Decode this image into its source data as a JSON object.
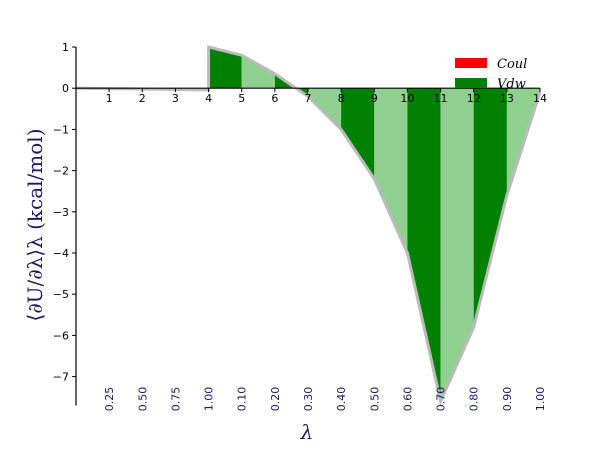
{
  "chart_data": {
    "type": "area",
    "ylabel": "⟨∂U/∂λ⟩λ (kcal/mol)",
    "xlabel": "λ",
    "ylim": [
      -7.7,
      1.0
    ],
    "yticks": [
      1,
      0,
      -1,
      -2,
      -3,
      -4,
      -5,
      -6,
      -7
    ],
    "ytick_labels": [
      "1",
      "0",
      "−1",
      "−2",
      "−3",
      "−4",
      "−5",
      "−6",
      "−7"
    ],
    "states": [
      "1",
      "2",
      "3",
      "4",
      "5",
      "6",
      "7",
      "8",
      "9",
      "10",
      "11",
      "12",
      "13",
      "14"
    ],
    "lambda_labels": [
      "0.25",
      "0.50",
      "0.75",
      "1.00",
      "0.10",
      "0.20",
      "0.30",
      "0.40",
      "0.50",
      "0.60",
      "0.70",
      "0.80",
      "0.90",
      "1.00"
    ],
    "series": [
      {
        "name": "Coul",
        "color": "#ff0000",
        "x": [
          0,
          1,
          2,
          3,
          4
        ],
        "values": [
          0.0,
          -0.01,
          -0.02,
          -0.03,
          -0.04
        ]
      },
      {
        "name": "Vdw",
        "color": "#008000",
        "x": [
          4,
          5,
          6,
          7,
          8,
          9,
          10,
          11,
          12,
          13,
          14
        ],
        "values": [
          1.0,
          0.8,
          0.35,
          -0.2,
          -1.0,
          -2.2,
          -4.0,
          -7.6,
          -5.8,
          -2.6,
          -0.1
        ]
      }
    ],
    "band_color": "#8fcf8f",
    "curve_color": "#bbbbbb"
  }
}
